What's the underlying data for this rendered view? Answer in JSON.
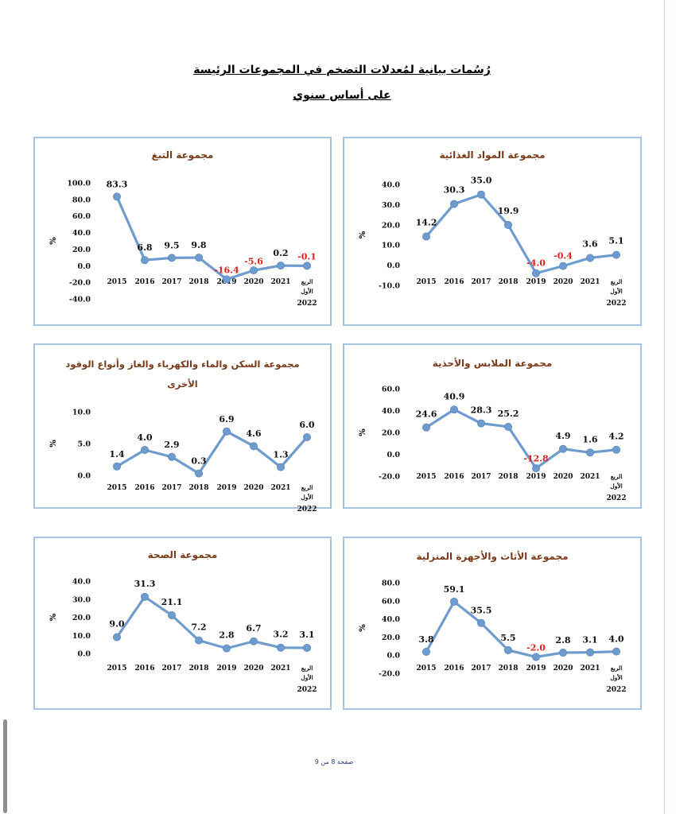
{
  "document": {
    "title": "رُسُمات بيانية لمُعدلات التضخم في المجموعات الرئيسة",
    "subtitle": "على أساس سنوي",
    "footer": "صفحة 8 من 9"
  },
  "colors": {
    "line": "#6e9ccf",
    "marker": "#6e9ccf",
    "title": "#7a3b1a",
    "negative": "#e02020",
    "frame": "#a9c4e0"
  },
  "chart_data": [
    {
      "type": "line",
      "title": "مجموعة المواد الغذائية",
      "ylabel": "%",
      "categories": [
        "2015",
        "2016",
        "2017",
        "2018",
        "2019",
        "2020",
        "2021",
        "الربع الأول 2022"
      ],
      "values": [
        14.2,
        30.3,
        35.0,
        19.9,
        -4.0,
        -0.4,
        3.6,
        5.1
      ],
      "labels": [
        "14.2",
        "30.3",
        "35.0",
        "19.9",
        "-4.0",
        "-0.4",
        "3.6",
        "5.1"
      ],
      "yticks": [
        "40.0",
        "30.0",
        "20.0",
        "10.0",
        "0.0",
        "-10.0"
      ],
      "ylim": [
        -10,
        40
      ]
    },
    {
      "type": "line",
      "title": "مجموعة التبغ",
      "ylabel": "%",
      "categories": [
        "2015",
        "2016",
        "2017",
        "2018",
        "2019",
        "2020",
        "2021",
        "الربع الأول 2022"
      ],
      "values": [
        83.3,
        6.8,
        9.5,
        9.8,
        -16.4,
        -5.6,
        0.2,
        -0.1
      ],
      "labels": [
        "83.3",
        "6.8",
        "9.5",
        "9.8",
        "-16.4",
        "-5.6",
        "0.2",
        "-0.1"
      ],
      "yticks": [
        "100.0",
        "80.0",
        "60.0",
        "40.0",
        "20.0",
        "0.0",
        "-20.0",
        "-40.0"
      ],
      "ylim": [
        -40,
        100
      ]
    },
    {
      "type": "line",
      "title": "مجموعة الملابس والأحذية",
      "ylabel": "%",
      "categories": [
        "2015",
        "2016",
        "2017",
        "2018",
        "2019",
        "2020",
        "2021",
        "الربع الأول 2022"
      ],
      "values": [
        24.6,
        40.9,
        28.3,
        25.2,
        -12.8,
        4.9,
        1.6,
        4.2
      ],
      "labels": [
        "24.6",
        "40.9",
        "28.3",
        "25.2",
        "-12.8",
        "4.9",
        "1.6",
        "4.2"
      ],
      "yticks": [
        "60.0",
        "40.0",
        "20.0",
        "0.0",
        "-20.0"
      ],
      "ylim": [
        -20,
        60
      ]
    },
    {
      "type": "line",
      "title": "مجموعة السكن والماء والكهرباء والغاز وأنواع الوقود الأخرى",
      "ylabel": "%",
      "categories": [
        "2015",
        "2016",
        "2017",
        "2018",
        "2019",
        "2020",
        "2021",
        "الربع الأول 2022"
      ],
      "values": [
        1.4,
        4.0,
        2.9,
        0.3,
        6.9,
        4.6,
        1.3,
        6.0
      ],
      "labels": [
        "1.4",
        "4.0",
        "2.9",
        "0.3",
        "6.9",
        "4.6",
        "1.3",
        "6.0"
      ],
      "yticks": [
        "10.0",
        "5.0",
        "0.0"
      ],
      "ylim": [
        0,
        10
      ]
    },
    {
      "type": "line",
      "title": "مجموعة الأثاث والأجهزة المنزلية",
      "ylabel": "%",
      "categories": [
        "2015",
        "2016",
        "2017",
        "2018",
        "2019",
        "2020",
        "2021",
        "الربع الأول 2022"
      ],
      "values": [
        3.8,
        59.1,
        35.5,
        5.5,
        -2.0,
        2.8,
        3.1,
        4.0
      ],
      "labels": [
        "3.8",
        "59.1",
        "35.5",
        "5.5",
        "-2.0",
        "2.8",
        "3.1",
        "4.0"
      ],
      "yticks": [
        "80.0",
        "60.0",
        "40.0",
        "20.0",
        "0.0",
        "-20.0"
      ],
      "ylim": [
        -20,
        80
      ]
    },
    {
      "type": "line",
      "title": "مجموعة الصحة",
      "ylabel": "%",
      "categories": [
        "2015",
        "2016",
        "2017",
        "2018",
        "2019",
        "2020",
        "2021",
        "الربع الأول 2022"
      ],
      "values": [
        9.0,
        31.3,
        21.1,
        7.2,
        2.8,
        6.7,
        3.2,
        3.1
      ],
      "labels": [
        "9.0",
        "31.3",
        "21.1",
        "7.2",
        "2.8",
        "6.7",
        "3.2",
        "3.1"
      ],
      "yticks": [
        "40.0",
        "30.0",
        "20.0",
        "10.0",
        "0.0"
      ],
      "ylim": [
        0,
        40
      ]
    }
  ]
}
